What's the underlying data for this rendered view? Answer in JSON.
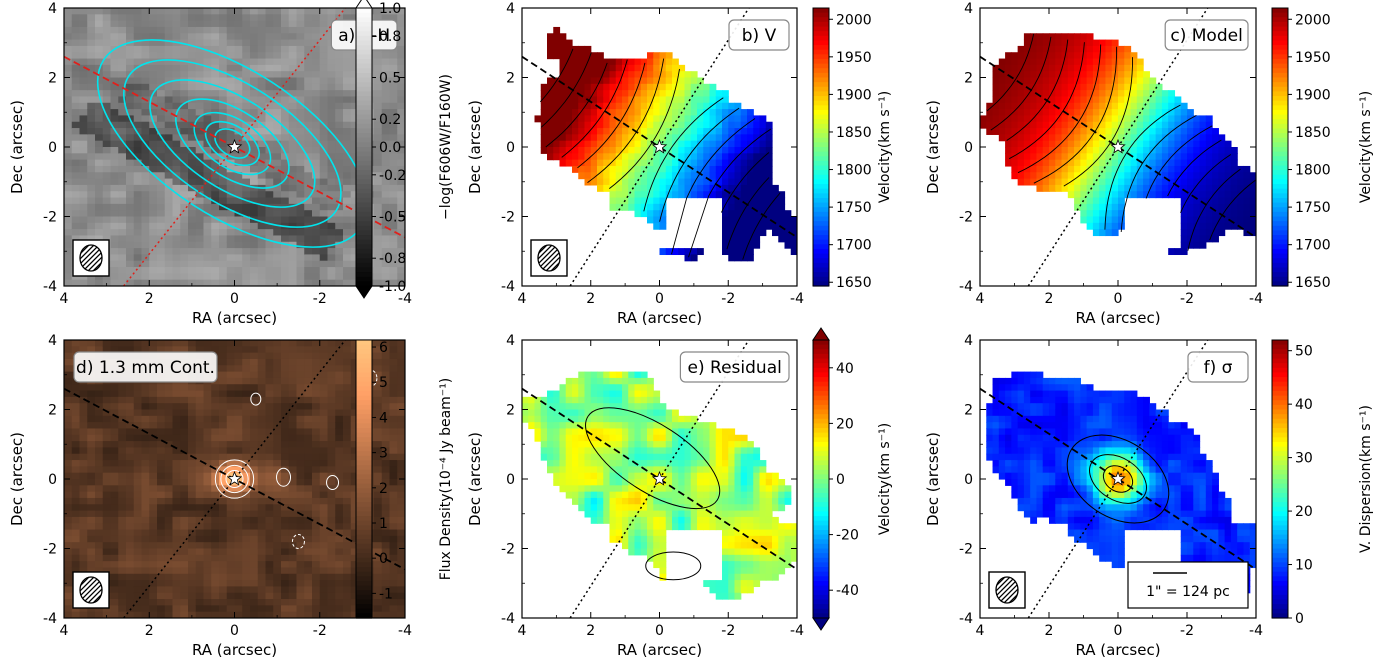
{
  "chart_data": [
    {
      "type": "heatmap",
      "panel_label": "a) V-H",
      "xlabel": "RA (arcsec)",
      "ylabel": "Dec (arcsec)",
      "xlim": [
        4,
        -4
      ],
      "ylim": [
        -4,
        4
      ],
      "x_ticks": [
        4,
        2,
        0,
        -2,
        -4
      ],
      "y_ticks": [
        4,
        2,
        0,
        -2,
        -4
      ],
      "colormap": "gray",
      "colorbar": {
        "label": "−log(F606W/F160W)",
        "range": [
          -1.0,
          1.0
        ],
        "ticks": [
          "1.0",
          "0.8",
          "0.5",
          "0.2",
          "0.0",
          "-0.2",
          "-0.5",
          "-0.8",
          "-1.0"
        ],
        "extend": "both"
      },
      "overlays": {
        "contours_color": "#00e5ee",
        "major_axis": {
          "style": "dashed",
          "color": "#e0201b",
          "pa_deg": -57
        },
        "minor_axis": {
          "style": "dotted",
          "color": "#e0201b",
          "pa_deg": 33
        },
        "beam": true,
        "center_star": [
          0,
          0
        ]
      }
    },
    {
      "type": "heatmap",
      "panel_label": "b) V",
      "xlabel": "RA (arcsec)",
      "ylabel": "Dec (arcsec)",
      "xlim": [
        4,
        -4
      ],
      "ylim": [
        -4,
        4
      ],
      "x_ticks": [
        4,
        2,
        0,
        -2,
        -4
      ],
      "y_ticks": [
        4,
        2,
        0,
        -2,
        -4
      ],
      "colormap": "jet",
      "colorbar": {
        "label": "Velocity(km s⁻¹)",
        "range": [
          1645,
          2015
        ],
        "ticks": [
          "2000",
          "1950",
          "1900",
          "1850",
          "1800",
          "1750",
          "1700",
          "1650"
        ],
        "extend": "neither"
      },
      "data_range": [
        1650,
        2010
      ],
      "overlays": {
        "black_contours": true,
        "major_axis": "dashed",
        "minor_axis": "dotted",
        "beam": true,
        "center_star": [
          0,
          0
        ]
      }
    },
    {
      "type": "heatmap",
      "panel_label": "c) Model",
      "xlabel": "RA (arcsec)",
      "ylabel": "Dec (arcsec)",
      "xlim": [
        4,
        -4
      ],
      "ylim": [
        -4,
        4
      ],
      "x_ticks": [
        4,
        2,
        0,
        -2,
        -4
      ],
      "y_ticks": [
        4,
        2,
        0,
        -2,
        -4
      ],
      "colormap": "jet",
      "colorbar": {
        "label": "Velocity(km s⁻¹)",
        "range": [
          1645,
          2015
        ],
        "ticks": [
          "2000",
          "1950",
          "1900",
          "1850",
          "1800",
          "1750",
          "1700",
          "1650"
        ],
        "extend": "neither"
      },
      "data_range": [
        1650,
        2010
      ],
      "overlays": {
        "black_contours": true,
        "major_axis": "dashed",
        "minor_axis": "dotted",
        "center_star": [
          0,
          0
        ]
      }
    },
    {
      "type": "heatmap",
      "panel_label": "d) 1.3 mm Cont.",
      "xlabel": "RA (arcsec)",
      "ylabel": "Dec (arcsec)",
      "xlim": [
        4,
        -4
      ],
      "ylim": [
        -4,
        4
      ],
      "x_ticks": [
        4,
        2,
        0,
        -2,
        -4
      ],
      "y_ticks": [
        4,
        2,
        0,
        -2,
        -4
      ],
      "colormap": "copper",
      "colorbar": {
        "label": "Flux Density(10⁻⁴ Jy beam⁻¹)",
        "range": [
          -1.7,
          6.2
        ],
        "ticks": [
          "6",
          "5",
          "4",
          "3",
          "2",
          "1",
          "0",
          "-1"
        ],
        "extend": "neither"
      },
      "overlays": {
        "white_contours": true,
        "major_axis": "dashed",
        "minor_axis": "dotted",
        "beam": true,
        "center_star": [
          0,
          0
        ]
      }
    },
    {
      "type": "heatmap",
      "panel_label": "e) Residual",
      "xlabel": "RA (arcsec)",
      "ylabel": "Dec (arcsec)",
      "xlim": [
        4,
        -4
      ],
      "ylim": [
        -4,
        4
      ],
      "x_ticks": [
        4,
        2,
        0,
        -2,
        -4
      ],
      "y_ticks": [
        4,
        2,
        0,
        -2,
        -4
      ],
      "colormap": "jet",
      "colorbar": {
        "label": "Velocity(km s⁻¹)",
        "range": [
          -50,
          50
        ],
        "ticks": [
          "40",
          "20",
          "0",
          "-20",
          "-40"
        ],
        "extend": "both"
      },
      "overlays": {
        "black_contours": true,
        "major_axis": "dashed",
        "minor_axis": "dotted",
        "center_star": [
          0,
          0
        ]
      }
    },
    {
      "type": "heatmap",
      "panel_label": "f) σ",
      "xlabel": "RA (arcsec)",
      "ylabel": "Dec (arcsec)",
      "xlim": [
        4,
        -4
      ],
      "ylim": [
        -4,
        4
      ],
      "x_ticks": [
        4,
        2,
        0,
        -2,
        -4
      ],
      "y_ticks": [
        4,
        2,
        0,
        -2,
        -4
      ],
      "colormap": "jet",
      "colorbar": {
        "label": "V. Dispersion(km s⁻¹)",
        "range": [
          0,
          52
        ],
        "ticks": [
          "50",
          "40",
          "30",
          "20",
          "10",
          "0"
        ],
        "extend": "neither"
      },
      "scale_bar": "1\" = 124 pc",
      "overlays": {
        "black_contours": true,
        "major_axis": "dashed",
        "minor_axis": "dotted",
        "beam": true,
        "center_star": [
          0,
          0
        ]
      }
    }
  ]
}
